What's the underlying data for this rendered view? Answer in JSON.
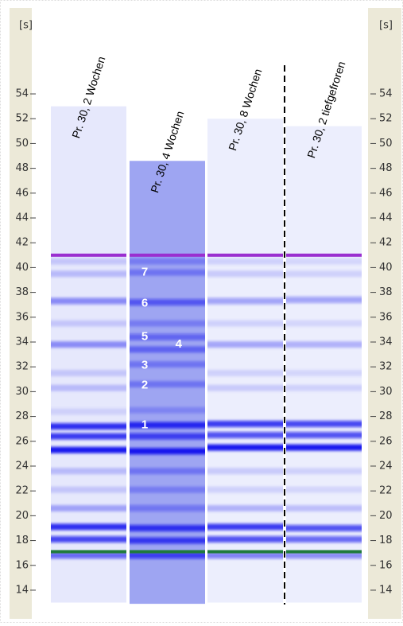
{
  "axis": {
    "unit": "[s]",
    "lim": [
      12.6,
      56.9
    ],
    "ticks": [
      14,
      16,
      18,
      20,
      22,
      24,
      26,
      28,
      30,
      32,
      34,
      36,
      38,
      40,
      42,
      44,
      46,
      48,
      50,
      52,
      54
    ]
  },
  "markers": [
    {
      "t": 41,
      "color": "#9a2fd0"
    },
    {
      "t": 17.1,
      "color": "#1f7a3c"
    }
  ],
  "lanes": [
    {
      "label": "Pr. 30, 2 Wochen",
      "top": 53,
      "bottom": 13.0,
      "fill": "#e6e8fc",
      "bands": [
        [
          40.5,
          0.15
        ],
        [
          39.5,
          0.2
        ],
        [
          37.3,
          0.45
        ],
        [
          35.5,
          0.15
        ],
        [
          33.8,
          0.4
        ],
        [
          31.5,
          0.15
        ],
        [
          30.3,
          0.2
        ],
        [
          28.4,
          0.1
        ],
        [
          27.2,
          0.85
        ],
        [
          26.4,
          0.8
        ],
        [
          25.3,
          0.95
        ],
        [
          23.6,
          0.2
        ],
        [
          22.1,
          0.15
        ],
        [
          20.6,
          0.3
        ],
        [
          19.1,
          0.85
        ],
        [
          18.1,
          0.75
        ],
        [
          16.8,
          0.6
        ]
      ]
    },
    {
      "label": "Pr. 30, 4 Wochen",
      "top": 48.6,
      "bottom": 12.9,
      "fill": "#9ea5f2",
      "bands": [
        [
          40.5,
          0.25
        ],
        [
          39.6,
          0.3
        ],
        [
          37.2,
          0.55
        ],
        [
          35.5,
          0.25
        ],
        [
          34.4,
          0.45
        ],
        [
          33.4,
          0.4
        ],
        [
          32.2,
          0.3
        ],
        [
          30.6,
          0.3
        ],
        [
          28.5,
          0.2
        ],
        [
          27.3,
          0.85
        ],
        [
          26.4,
          0.7
        ],
        [
          25.2,
          0.95
        ],
        [
          23.6,
          0.3
        ],
        [
          22.1,
          0.25
        ],
        [
          20.6,
          0.35
        ],
        [
          19.0,
          0.8
        ],
        [
          18.0,
          0.75
        ],
        [
          16.8,
          0.7
        ]
      ]
    },
    {
      "label": "Pr. 30, 8 Wochen",
      "top": 52,
      "bottom": 13.0,
      "fill": "#eceefd",
      "bands": [
        [
          40.5,
          0.12
        ],
        [
          39.5,
          0.15
        ],
        [
          37.3,
          0.35
        ],
        [
          35.5,
          0.12
        ],
        [
          33.8,
          0.3
        ],
        [
          31.5,
          0.12
        ],
        [
          30.3,
          0.15
        ],
        [
          27.4,
          0.8
        ],
        [
          26.5,
          0.7
        ],
        [
          25.5,
          0.95
        ],
        [
          23.6,
          0.15
        ],
        [
          22.1,
          0.12
        ],
        [
          20.6,
          0.25
        ],
        [
          19.1,
          0.8
        ],
        [
          18.1,
          0.7
        ],
        [
          16.8,
          0.5
        ]
      ]
    },
    {
      "label": "Pr. 30, 2 tiefgefroren",
      "top": 51.4,
      "bottom": 13.0,
      "fill": "#eceefd",
      "bands": [
        [
          40.5,
          0.1
        ],
        [
          39.5,
          0.12
        ],
        [
          37.4,
          0.35
        ],
        [
          35.5,
          0.1
        ],
        [
          33.8,
          0.25
        ],
        [
          31.5,
          0.1
        ],
        [
          30.3,
          0.12
        ],
        [
          27.4,
          0.75
        ],
        [
          26.5,
          0.7
        ],
        [
          25.5,
          0.95
        ],
        [
          23.6,
          0.12
        ],
        [
          22.1,
          0.1
        ],
        [
          20.6,
          0.2
        ],
        [
          19.0,
          0.7
        ],
        [
          18.1,
          0.6
        ],
        [
          16.8,
          0.45
        ]
      ]
    }
  ],
  "band_labels": [
    {
      "text": "7",
      "t": 39.6,
      "lane": 1,
      "dx": 0.2
    },
    {
      "text": "6",
      "t": 37.1,
      "lane": 1,
      "dx": 0.2
    },
    {
      "text": "5",
      "t": 34.4,
      "lane": 1,
      "dx": 0.2
    },
    {
      "text": "4",
      "t": 33.8,
      "lane": 1,
      "dx": 0.65
    },
    {
      "text": "3",
      "t": 32.1,
      "lane": 1,
      "dx": 0.2
    },
    {
      "text": "2",
      "t": 30.5,
      "lane": 1,
      "dx": 0.2
    },
    {
      "text": "1",
      "t": 27.3,
      "lane": 1,
      "dx": 0.2
    }
  ]
}
